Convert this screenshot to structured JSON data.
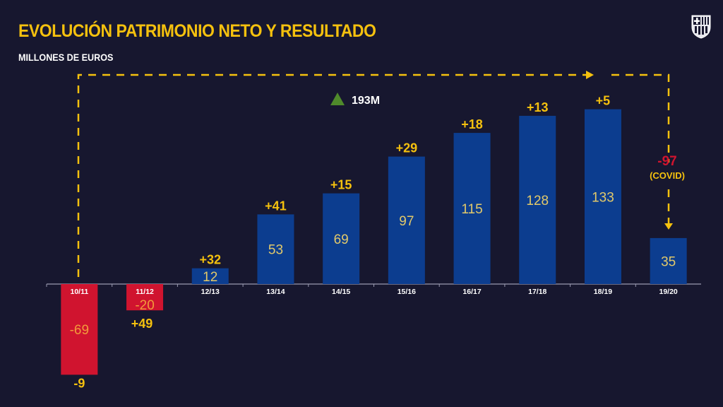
{
  "header": {
    "title": "EVOLUCIÓN PATRIMONIO NETO Y RESULTADO",
    "subtitle": "MILLONES DE EUROS"
  },
  "annotation": {
    "total_change": "193M",
    "covid_change": "-97",
    "covid_note": "(COVID)"
  },
  "colors": {
    "positive_bar": "#0c3d8f",
    "negative_bar": "#d0142f",
    "accent": "#f5c10e",
    "up_arrow": "#4f8a2b",
    "background": "#17172f"
  },
  "chart_data": {
    "type": "bar",
    "title": "EVOLUCIÓN PATRIMONIO NETO Y RESULTADO",
    "ylabel": "MILLONES DE EUROS",
    "categories": [
      "10/11",
      "11/12",
      "12/13",
      "13/14",
      "14/15",
      "15/16",
      "16/17",
      "17/18",
      "18/19",
      "19/20"
    ],
    "series": [
      {
        "name": "Patrimonio neto",
        "values": [
          -69,
          -20,
          12,
          53,
          69,
          97,
          115,
          128,
          133,
          35
        ]
      },
      {
        "name": "Resultado",
        "values": [
          -9,
          49,
          32,
          41,
          15,
          29,
          18,
          13,
          5,
          -97
        ]
      }
    ],
    "result_labels": [
      "-9",
      "+49",
      "+32",
      "+41",
      "+15",
      "+29",
      "+18",
      "+13",
      "+5",
      "-97"
    ],
    "value_labels": [
      "-69",
      "-20",
      "12",
      "53",
      "69",
      "97",
      "115",
      "128",
      "133",
      "35"
    ],
    "grid": false
  }
}
